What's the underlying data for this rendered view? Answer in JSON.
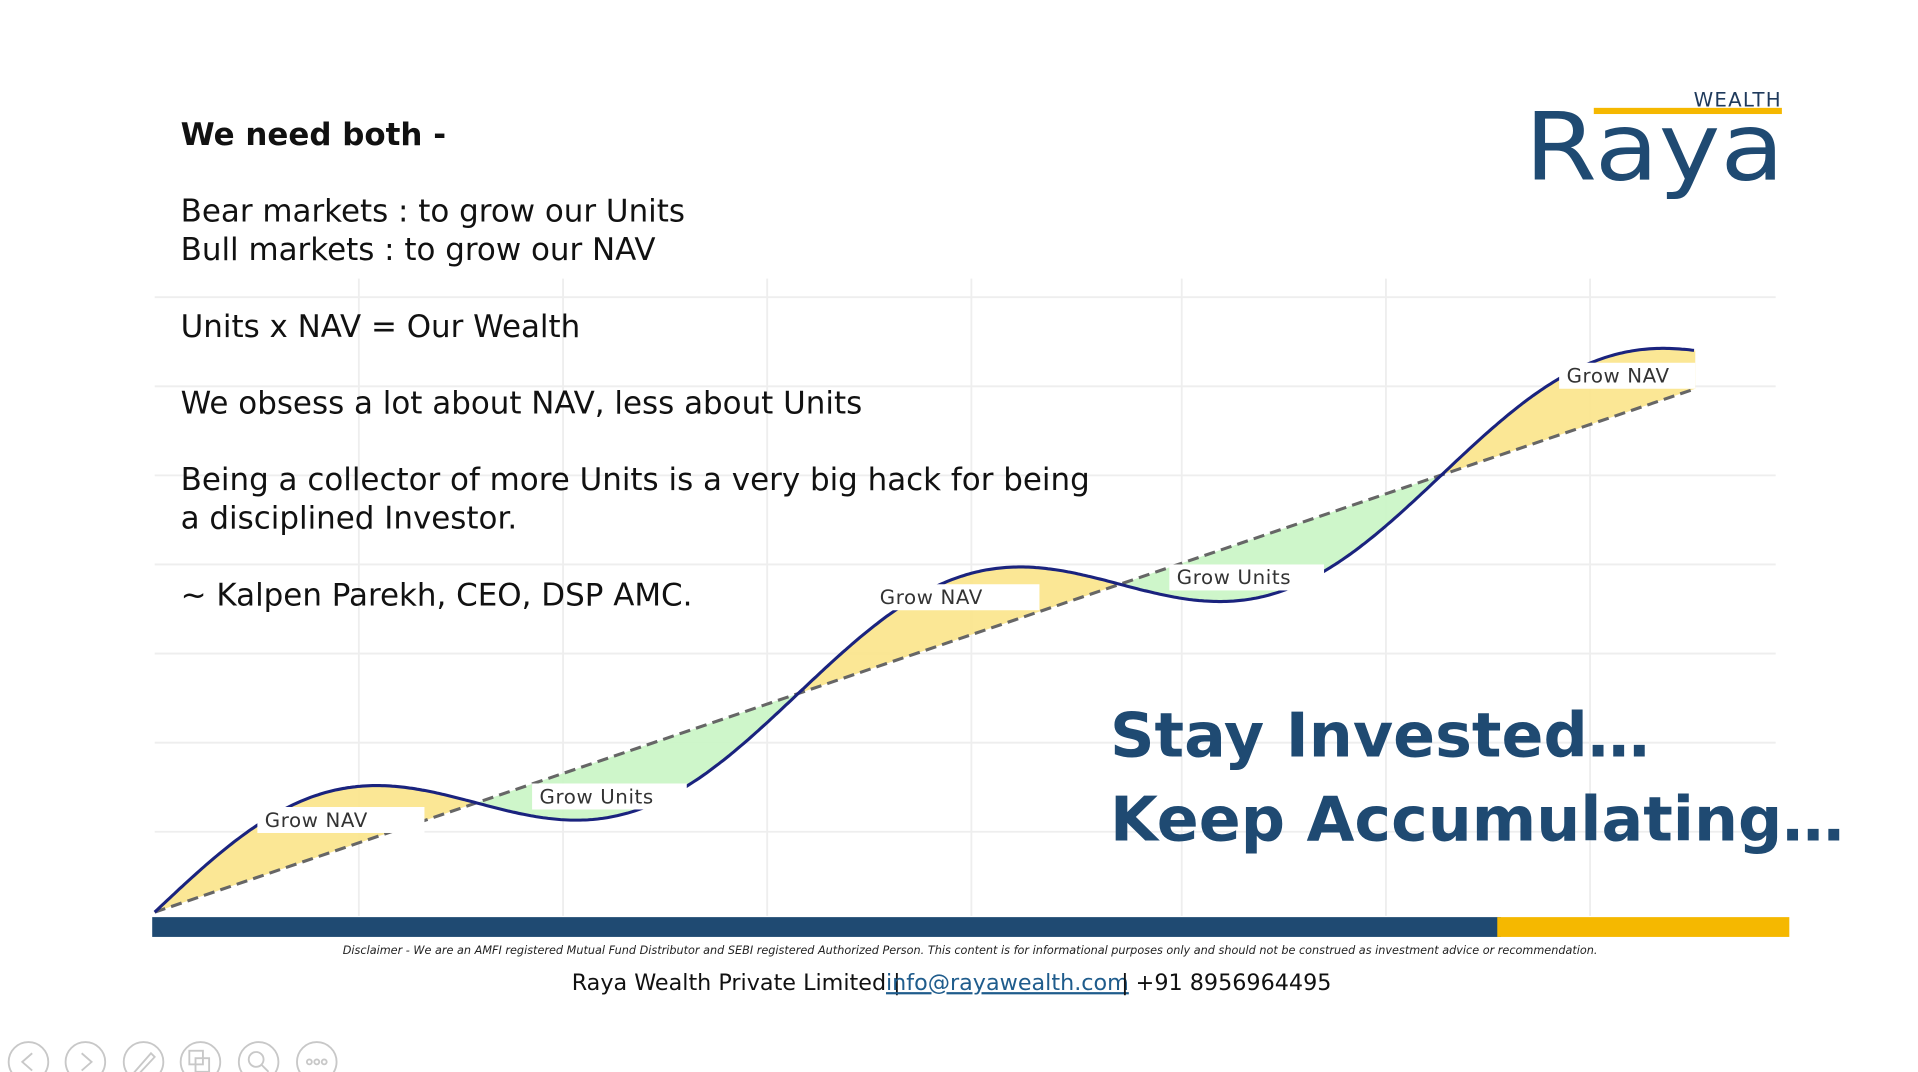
{
  "slide": {
    "heading": "We need both -",
    "lines": [
      "Bear markets : to grow our Units",
      "Bull markets : to grow our NAV",
      "Units x NAV = Our Wealth",
      "We obsess a lot about NAV, less about Units",
      "Being a collector of more Units is a very big hack for being",
      "a disciplined Investor.",
      "~ Kalpen Parekh, CEO, DSP AMC."
    ],
    "logo": {
      "tag": "WEALTH",
      "wordmark": "Raya"
    },
    "illustration_labels": [
      "Grow NAV",
      "Grow Units",
      "Grow NAV",
      "Grow Units",
      "Grow NAV"
    ],
    "tagline": [
      "Stay Invested…",
      "Keep Accumulating…"
    ],
    "disclaimer": "Disclaimer - We are an AMFI registered Mutual Fund Distributor and SEBI registered Authorized Person. This content is for informational purposes only and should not be construed as investment advice or recommendation.",
    "footer": {
      "company": "Raya Wealth Private Limited |",
      "email": "info@rayawealth.com",
      "phone": "| +91 8956964495"
    }
  }
}
